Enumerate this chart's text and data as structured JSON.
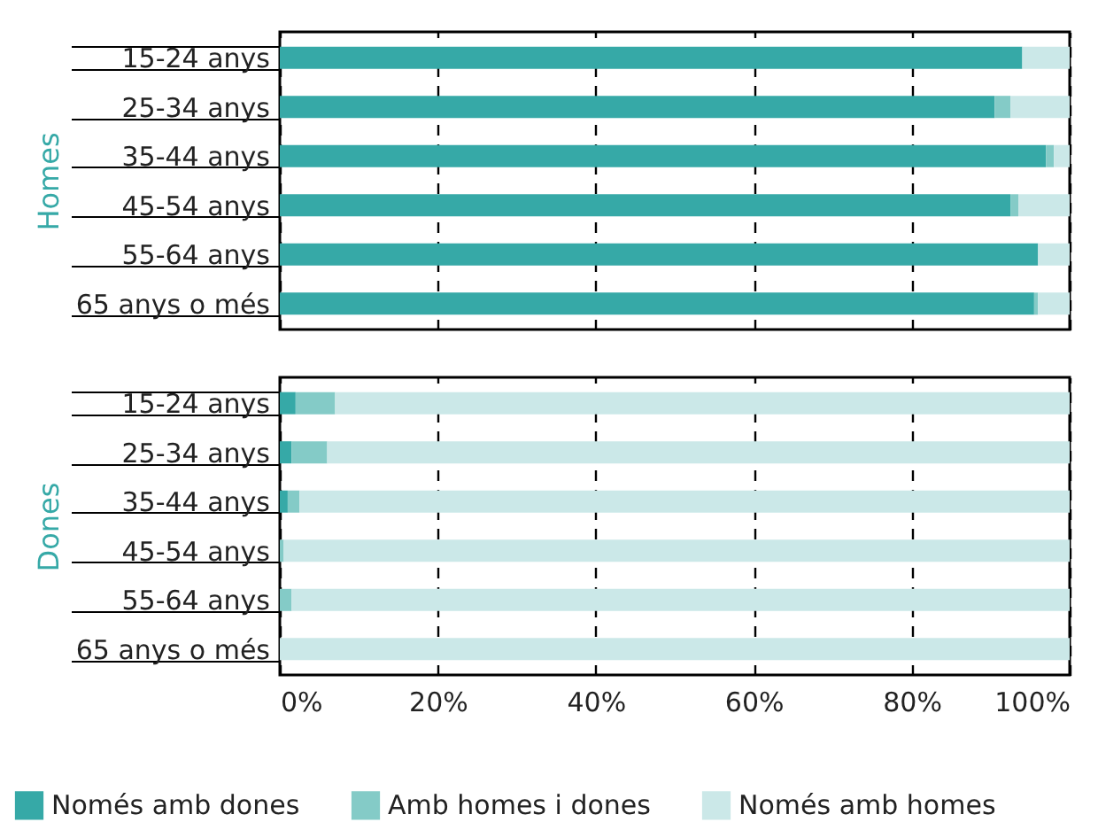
{
  "chart_data": [
    {
      "type": "bar",
      "orientation": "horizontal",
      "stacked": true,
      "ylabel": "Homes",
      "categories": [
        "15-24 anys",
        "25-34 anys",
        "35-44 anys",
        "45-54 anys",
        "55-64 anys",
        "65 anys o més"
      ],
      "series": [
        {
          "name": "Només amb dones",
          "color": "#36a9a7",
          "values": [
            94,
            90.5,
            97,
            92.5,
            96,
            95.5
          ]
        },
        {
          "name": "Amb homes i dones",
          "color": "#84cbc7",
          "values": [
            0,
            2,
            1,
            1,
            0,
            0.5
          ]
        },
        {
          "name": "Només amb homes",
          "color": "#cbe8e8",
          "values": [
            6,
            7.5,
            2,
            6.5,
            4,
            4
          ]
        }
      ],
      "xlim": [
        0,
        100
      ],
      "xticks": [
        0,
        20,
        40,
        60,
        80,
        100
      ],
      "grid": "x",
      "tick_labels": "y",
      "legend": "bottom"
    },
    {
      "type": "bar",
      "orientation": "horizontal",
      "stacked": true,
      "ylabel": "Dones",
      "categories": [
        "15-24 anys",
        "25-34 anys",
        "35-44 anys",
        "45-54 anys",
        "55-64 anys",
        "65 anys o més"
      ],
      "series": [
        {
          "name": "Només amb dones",
          "color": "#36a9a7",
          "values": [
            2,
            1.5,
            1,
            0,
            0,
            0
          ]
        },
        {
          "name": "Amb homes i dones",
          "color": "#84cbc7",
          "values": [
            5,
            4.5,
            1.5,
            0.5,
            1.5,
            0
          ]
        },
        {
          "name": "Només amb homes",
          "color": "#cbe8e8",
          "values": [
            93,
            94,
            97.5,
            99.5,
            98.5,
            100
          ]
        }
      ],
      "xlim": [
        0,
        100
      ],
      "xticks": [
        {
          "value": 0,
          "label": "0%"
        },
        {
          "value": 20,
          "label": "20%"
        },
        {
          "value": 40,
          "label": "40%"
        },
        {
          "value": 60,
          "label": "60%"
        },
        {
          "value": 80,
          "label": "80%"
        },
        {
          "value": 100,
          "label": "100%"
        }
      ],
      "grid": "x",
      "legend": "bottom"
    }
  ]
}
